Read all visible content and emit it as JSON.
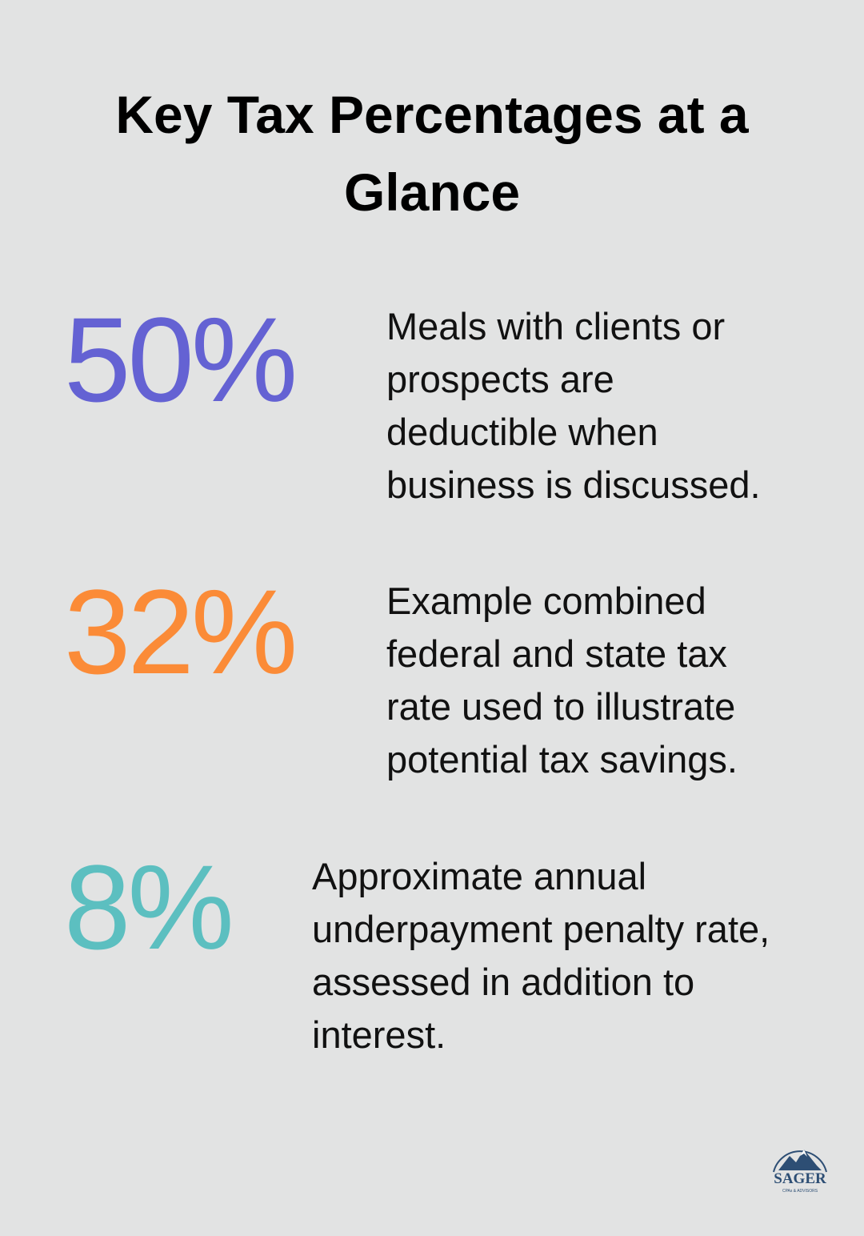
{
  "title": "Key Tax Percentages at a Glance",
  "stats": [
    {
      "figure": "50%",
      "description": "Meals with clients or prospects are deductible when business is discussed."
    },
    {
      "figure": "32%",
      "description": "Example combined federal and state tax rate used to illustrate potential tax savings."
    },
    {
      "figure": "8%",
      "description": "Approximate annual underpayment penalty rate, assessed in addition to interest."
    }
  ],
  "logo": {
    "brand": "SAGER",
    "tagline": "CPAs & ADVISORS"
  }
}
